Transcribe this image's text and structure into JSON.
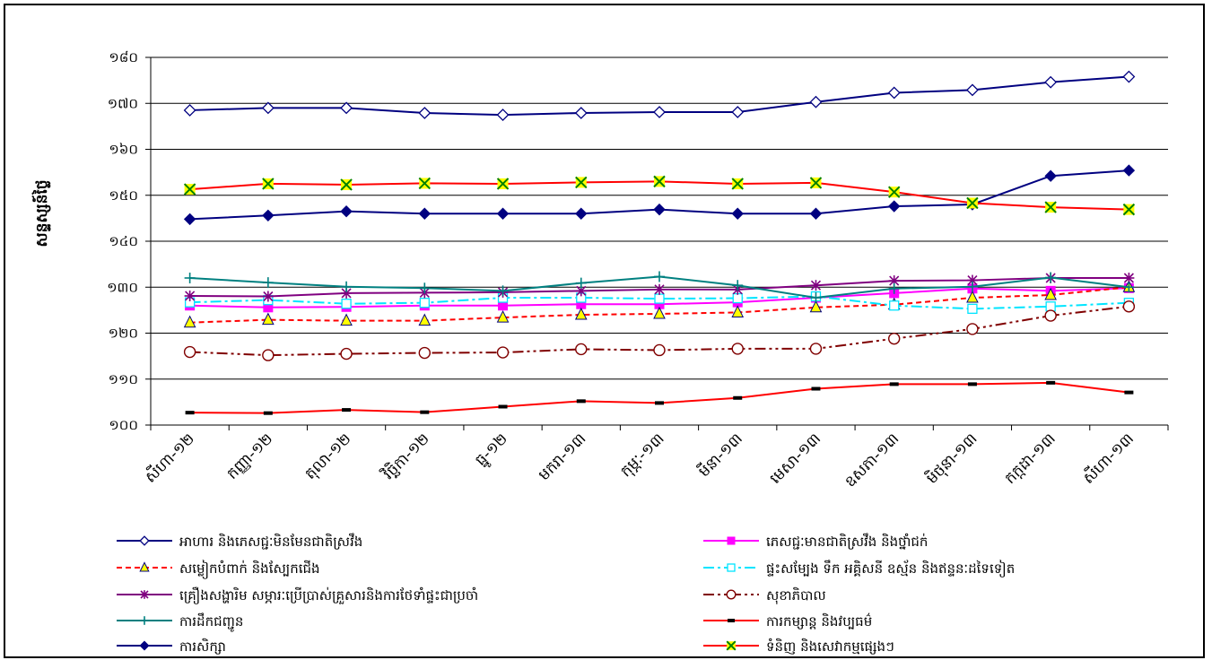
{
  "chart_data": {
    "type": "line",
    "title": "",
    "xlabel": "",
    "ylabel": "សន្ទស្សន៍ថ្លៃ",
    "ylim": [
      100,
      180
    ],
    "yticks": [
      100,
      110,
      120,
      130,
      140,
      150,
      160,
      170,
      180
    ],
    "ytick_labels": [
      "១០០",
      "១១០",
      "១២០",
      "១៣០",
      "១៤០",
      "១៥០",
      "១៦០",
      "១៧០",
      "១៨០"
    ],
    "grid": "horizontal",
    "legend_position": "bottom",
    "categories": [
      "សីហា-១២",
      "កញ្ញា-១២",
      "តុលា-១២",
      "វិច្ឆិកា-១២",
      "ធ្នូ-១២",
      "មករា-១៣",
      "កុម្ភៈ-១៣",
      "មីនា-១៣",
      "មេសា-១៣",
      "ឧសភា-១៣",
      "មិថុនា-១៣",
      "កក្កដា-១៣",
      "សីហា-១៣"
    ],
    "series": [
      {
        "name": "អាហារ និងភេសជ្ជៈមិនមែនជាតិស្រវឹង",
        "color": "#000080",
        "marker": "diamond-open",
        "dash": "",
        "values": [
          168.5,
          169.0,
          169.0,
          167.9,
          167.5,
          167.9,
          168.1,
          168.1,
          170.3,
          172.3,
          172.9,
          174.6,
          175.8
        ]
      },
      {
        "name": "ភេសជ្ជៈមានជាតិស្រវឹង និងថ្នាំជក់",
        "color": "#ff00ff",
        "marker": "square-filled",
        "dash": "",
        "values": [
          126.0,
          125.6,
          125.7,
          126.0,
          126.0,
          126.3,
          126.3,
          126.7,
          127.7,
          128.7,
          129.7,
          129.2,
          129.8
        ]
      },
      {
        "name": "សម្លៀកបំពាក់ និងស្បែកជើង",
        "color": "#ff0000",
        "marker": "triangle-yellow",
        "dash": "6,4",
        "values": [
          122.3,
          122.9,
          122.7,
          122.7,
          123.4,
          124.0,
          124.2,
          124.5,
          125.6,
          126.2,
          127.7,
          128.3,
          130.0
        ]
      },
      {
        "name": "ផ្ទះសម្បែង ទឹក អគ្គិសនី ឧស្ម័ន និងឥន្ទនៈដទៃទៀត",
        "color": "#00e5ff",
        "marker": "square-open",
        "dash": "12,4,3,4",
        "values": [
          126.7,
          127.2,
          126.4,
          126.6,
          127.7,
          127.7,
          127.5,
          127.6,
          128.0,
          126.0,
          125.3,
          125.8,
          126.6
        ]
      },
      {
        "name": "គ្រឿងសង្ហារិម សម្ភារៈប្រើប្រាស់គ្រួសារនិងការថែទាំផ្ទះជាប្រចាំ",
        "color": "#800080",
        "marker": "asterisk",
        "dash": "",
        "values": [
          128.1,
          128.0,
          128.7,
          128.8,
          128.9,
          129.2,
          129.5,
          129.5,
          130.4,
          131.4,
          131.5,
          132.0,
          132.0
        ]
      },
      {
        "name": "សុខាភិបាល",
        "color": "#800000",
        "marker": "circle-open",
        "dash": "12,4,3,4,3,4",
        "values": [
          115.9,
          115.2,
          115.5,
          115.7,
          115.8,
          116.5,
          116.3,
          116.6,
          116.6,
          118.8,
          120.9,
          123.8,
          125.8
        ]
      },
      {
        "name": "ការដឹកជញ្ជូន",
        "color": "#008080",
        "marker": "plus",
        "dash": "",
        "values": [
          132.0,
          131.0,
          130.1,
          129.8,
          129.2,
          130.9,
          132.3,
          130.4,
          127.7,
          129.7,
          130.1,
          132.1,
          130.0
        ]
      },
      {
        "name": "ការកម្សាន្ត និងវប្បធម៌",
        "color": "#ff0000",
        "marker": "dash",
        "dash": "",
        "values": [
          102.7,
          102.6,
          103.3,
          102.8,
          104.0,
          105.2,
          104.8,
          105.9,
          107.9,
          108.9,
          108.9,
          109.2,
          107.1
        ]
      },
      {
        "name": "ការសិក្សា",
        "color": "#000080",
        "marker": "diamond-filled",
        "dash": "",
        "values": [
          144.8,
          145.6,
          146.5,
          146.0,
          146.0,
          146.0,
          146.9,
          146.0,
          146.0,
          147.6,
          148.0,
          154.2,
          155.4
        ]
      },
      {
        "name": "ទំនិញ និងសេវាកម្មផ្សេងៗ",
        "color": "#ff0000",
        "marker": "x-yellow",
        "dash": "",
        "values": [
          151.3,
          152.5,
          152.3,
          152.6,
          152.5,
          152.8,
          153.0,
          152.5,
          152.7,
          150.7,
          148.3,
          147.4,
          146.9
        ]
      }
    ]
  }
}
